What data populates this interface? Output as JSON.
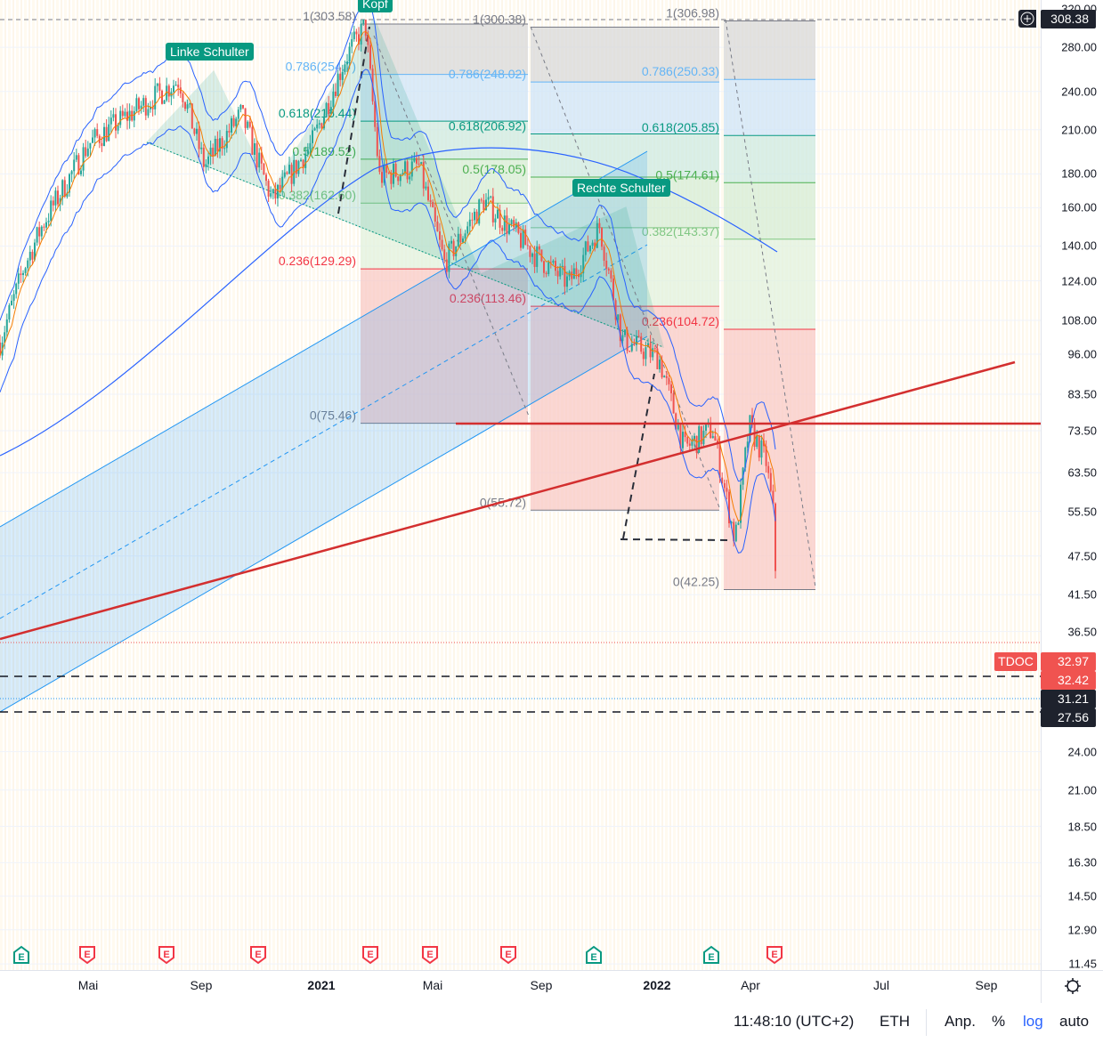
{
  "symbol": "TDOC",
  "colors": {
    "up": "#26a69a",
    "down": "#ef5350",
    "ma": "#2962ff",
    "red_line": "#d32f2f",
    "channel": "#2196f3",
    "pattern": "#089981"
  },
  "price_axis": {
    "ticks": [
      320,
      280,
      240,
      210,
      180,
      160,
      140,
      124,
      108,
      96,
      83.5,
      73.5,
      63.5,
      55.5,
      47.5,
      41.5,
      36.5,
      24,
      21,
      18.5,
      16.3,
      14.5,
      12.9,
      11.45
    ],
    "tick_labels": [
      "320.00",
      "280.00",
      "240.00",
      "210.00",
      "180.00",
      "160.00",
      "140.00",
      "124.00",
      "108.00",
      "96.00",
      "83.50",
      "73.50",
      "63.50",
      "55.50",
      "47.50",
      "41.50",
      "36.50",
      "24.00",
      "21.00",
      "18.50",
      "16.30",
      "14.50",
      "12.90",
      "11.45"
    ],
    "scale": "log"
  },
  "price_tags": {
    "high": "308.38",
    "symbol_label": "TDOC",
    "last": "32.97",
    "tag2": "32.42",
    "tag3": "31.21",
    "tag4": "27.56"
  },
  "time_axis": {
    "labels": [
      "Mai",
      "Sep",
      "2021",
      "Mai",
      "Sep",
      "2022",
      "Apr",
      "Jul",
      "Sep"
    ]
  },
  "status_bar": {
    "time": "11:48:10 (UTC+2)",
    "session": "ETH",
    "adjust": "Anp.",
    "percent": "%",
    "log": "log",
    "auto": "auto"
  },
  "pattern_labels": {
    "left_shoulder": "Linke Schulter",
    "head": "Kopf",
    "right_shoulder": "Rechte Schulter"
  },
  "fib1": {
    "levels": [
      {
        "text": "1(303.58)",
        "price": 303.58
      },
      {
        "text": "0.786(254.7)",
        "price": 254.7
      },
      {
        "text": "0.618(216.44)",
        "price": 216.44
      },
      {
        "text": "0.5(189.52)",
        "price": 189.52
      },
      {
        "text": "0.382(162.60)",
        "price": 162.6
      },
      {
        "text": "0.236(129.29)",
        "price": 129.29
      },
      {
        "text": "0(75.46)",
        "price": 75.46
      }
    ]
  },
  "fib2": {
    "levels": [
      {
        "text": "1(300.38)",
        "price": 300.38
      },
      {
        "text": "0.786(248.02)",
        "price": 248.02
      },
      {
        "text": "0.618(206.92)",
        "price": 206.92
      },
      {
        "text": "0.5(178.05)",
        "price": 178.05
      },
      {
        "text": "",
        "price": 149.2
      },
      {
        "text": "0.236(113.46)",
        "price": 113.46
      },
      {
        "text": "0(55.72)",
        "price": 55.72
      }
    ]
  },
  "fib3": {
    "levels": [
      {
        "text": "1(306.98)",
        "price": 306.98
      },
      {
        "text": "0.786(250.33)",
        "price": 250.33
      },
      {
        "text": "0.618(205.85)",
        "price": 205.85
      },
      {
        "text": "0.5(174.61)",
        "price": 174.61
      },
      {
        "text": "0.382(143.37)",
        "price": 143.37
      },
      {
        "text": "0.236(104.72)",
        "price": 104.72
      },
      {
        "text": "0(42.25)",
        "price": 42.25
      }
    ]
  },
  "earnings": [
    "E",
    "E",
    "E",
    "E",
    "E",
    "E",
    "E",
    "E",
    "E",
    "E"
  ],
  "price_series": [
    [
      0.85,
      100
    ],
    [
      1.7,
      130
    ],
    [
      2.4,
      152
    ],
    [
      4,
      200
    ],
    [
      5,
      215
    ],
    [
      7.2,
      250
    ],
    [
      8.1,
      185
    ],
    [
      9.4,
      222
    ],
    [
      10.5,
      164
    ],
    [
      11.9,
      200
    ],
    [
      13.1,
      270
    ],
    [
      13.8,
      303
    ],
    [
      14.3,
      178
    ],
    [
      15.7,
      185
    ],
    [
      16.6,
      132
    ],
    [
      18,
      164
    ],
    [
      19.8,
      136
    ],
    [
      21,
      123
    ],
    [
      22.1,
      150
    ],
    [
      22.9,
      101
    ],
    [
      24.2,
      95
    ],
    [
      25.1,
      69
    ],
    [
      26.1,
      74
    ],
    [
      26.9,
      50
    ],
    [
      27.4,
      75
    ],
    [
      28,
      66
    ],
    [
      28.3,
      53
    ],
    [
      28.4,
      31
    ]
  ]
}
